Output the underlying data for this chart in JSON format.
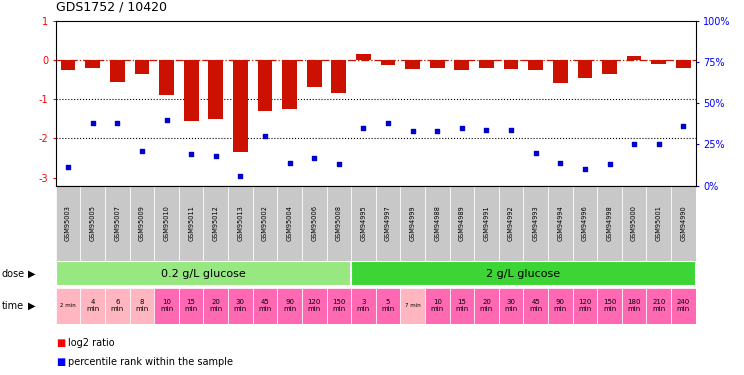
{
  "title": "GDS1752 / 10420",
  "samples": [
    "GSM95003",
    "GSM95005",
    "GSM95007",
    "GSM95009",
    "GSM95010",
    "GSM95011",
    "GSM95012",
    "GSM95013",
    "GSM95002",
    "GSM95004",
    "GSM95006",
    "GSM95008",
    "GSM94995",
    "GSM94997",
    "GSM94999",
    "GSM94988",
    "GSM94989",
    "GSM94991",
    "GSM94992",
    "GSM94993",
    "GSM94994",
    "GSM94996",
    "GSM94998",
    "GSM95000",
    "GSM95001",
    "GSM94990"
  ],
  "log2_ratio": [
    -0.25,
    -0.2,
    -0.55,
    -0.35,
    -0.9,
    -1.55,
    -1.5,
    -2.35,
    -1.3,
    -1.25,
    -0.7,
    -0.85,
    0.15,
    -0.12,
    -0.22,
    -0.2,
    -0.25,
    -0.2,
    -0.22,
    -0.25,
    -0.6,
    -0.45,
    -0.35,
    0.1,
    -0.1,
    -0.2
  ],
  "percentile_rank": [
    11,
    38,
    38,
    21,
    40,
    19,
    18,
    6,
    30,
    14,
    17,
    13,
    35,
    38,
    33,
    33,
    35,
    34,
    34,
    20,
    14,
    10,
    13,
    25,
    25,
    36
  ],
  "dose_groups": [
    {
      "label": "0.2 g/L glucose",
      "start": 0,
      "end": 12,
      "color": "#98E882"
    },
    {
      "label": "2 g/L glucose",
      "start": 12,
      "end": 26,
      "color": "#3CD535"
    }
  ],
  "time_labels": [
    "2 min",
    "4\nmin",
    "6\nmin",
    "8\nmin",
    "10\nmin",
    "15\nmin",
    "20\nmin",
    "30\nmin",
    "45\nmin",
    "90\nmin",
    "120\nmin",
    "150\nmin",
    "3\nmin",
    "5\nmin",
    "7 min",
    "10\nmin",
    "15\nmin",
    "20\nmin",
    "30\nmin",
    "45\nmin",
    "90\nmin",
    "120\nmin",
    "150\nmin",
    "180\nmin",
    "210\nmin",
    "240\nmin"
  ],
  "time_colors": [
    "#FFB6C1",
    "#FFB6C1",
    "#FFB6C1",
    "#FFB6C1",
    "#FF69B4",
    "#FF69B4",
    "#FF69B4",
    "#FF69B4",
    "#FF69B4",
    "#FF69B4",
    "#FF69B4",
    "#FF69B4",
    "#FF69B4",
    "#FF69B4",
    "#FFB6C1",
    "#FF69B4",
    "#FF69B4",
    "#FF69B4",
    "#FF69B4",
    "#FF69B4",
    "#FF69B4",
    "#FF69B4",
    "#FF69B4",
    "#FF69B4",
    "#FF69B4",
    "#FF69B4"
  ],
  "bar_color": "#CC1100",
  "scatter_color": "#0000CC",
  "ref_line_color": "#CC1100",
  "dot_line_color": "#000000",
  "ylim_left": [
    -3.2,
    1.0
  ],
  "ylim_right": [
    0,
    100
  ],
  "yticks_left": [
    -3,
    -2,
    -1,
    0,
    1
  ],
  "ytick_labels_right": [
    "0%",
    "25%",
    "50%",
    "75%",
    "100%"
  ],
  "yticks_right": [
    0,
    25,
    50,
    75,
    100
  ],
  "sample_bg_color": "#CCCCCC",
  "background_color": "#FFFFFF"
}
